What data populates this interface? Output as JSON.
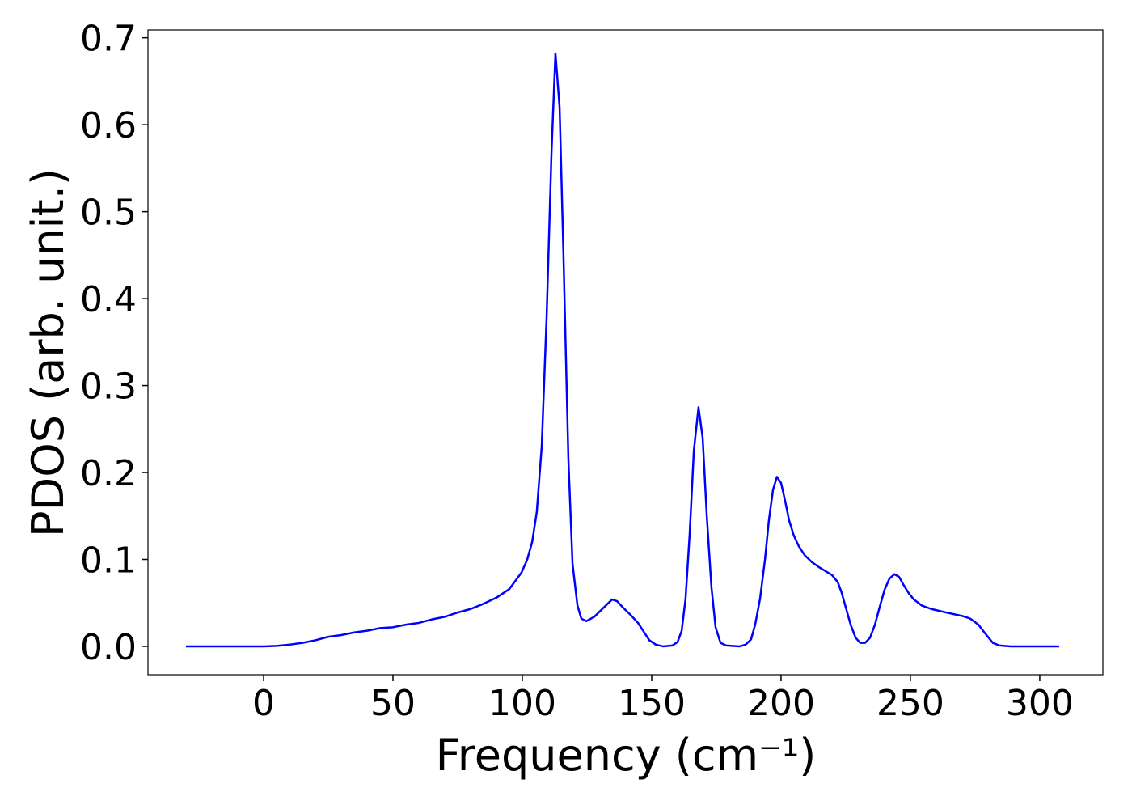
{
  "chart_data": {
    "type": "line",
    "xlabel": "Frequency (cm⁻¹)",
    "ylabel": "PDOS (arb. unit.)",
    "xlim": [
      -44.7,
      324.4
    ],
    "ylim": [
      -0.0326,
      0.709
    ],
    "xticks": [
      0,
      50,
      100,
      150,
      200,
      250,
      300
    ],
    "yticks": [
      {
        "value": 0,
        "label": "0.0"
      },
      0.1,
      0.2,
      0.3,
      0.4,
      0.5,
      0.6,
      0.7
    ],
    "series": [
      {
        "name": "PDOS",
        "color": "#0000ff",
        "x": [
          -30,
          0,
          5,
          10,
          15,
          20,
          25,
          30,
          35,
          40,
          45,
          50,
          55,
          60,
          65,
          70,
          75,
          80,
          85,
          90,
          95,
          99.7,
          101.9,
          103.8,
          105.6,
          107.5,
          109.4,
          111.3,
          112.8,
          114.4,
          115.9,
          117.8,
          119.4,
          121.3,
          122.8,
          124.7,
          127.8,
          130.9,
          134.7,
          136.6,
          138.8,
          141.9,
          144.7,
          146.9,
          149.1,
          151.6,
          154.4,
          158,
          160,
          161.6,
          163.1,
          164.7,
          166.3,
          168.1,
          169.7,
          171.3,
          173.1,
          174.7,
          176.6,
          178.8,
          184,
          186.3,
          188.4,
          190,
          191.9,
          193.8,
          195.3,
          196.9,
          198.4,
          200,
          201.6,
          203.1,
          205,
          206.9,
          209.1,
          211.9,
          214.7,
          217.5,
          219.7,
          221.9,
          223.4,
          225,
          226.9,
          228.8,
          230.6,
          232.5,
          234.4,
          236.3,
          238.1,
          240,
          241.9,
          243.8,
          245.6,
          247.5,
          249.4,
          251.3,
          254.4,
          258.1,
          263.8,
          270,
          273.1,
          276.3,
          279.4,
          281.9,
          284.4,
          288.8,
          307.5
        ],
        "values": [
          0,
          0,
          0.0005,
          0.002,
          0.004,
          0.007,
          0.011,
          0.013,
          0.016,
          0.018,
          0.021,
          0.022,
          0.025,
          0.027,
          0.031,
          0.034,
          0.039,
          0.043,
          0.049,
          0.056,
          0.066,
          0.085,
          0.1,
          0.12,
          0.155,
          0.23,
          0.38,
          0.57,
          0.682,
          0.62,
          0.45,
          0.215,
          0.095,
          0.047,
          0.032,
          0.029,
          0.034,
          0.043,
          0.054,
          0.052,
          0.045,
          0.036,
          0.027,
          0.017,
          0.007,
          0.002,
          0,
          0.001,
          0.005,
          0.018,
          0.055,
          0.13,
          0.225,
          0.275,
          0.24,
          0.15,
          0.068,
          0.022,
          0.004,
          0.001,
          0,
          0.002,
          0.008,
          0.025,
          0.055,
          0.1,
          0.145,
          0.18,
          0.195,
          0.188,
          0.167,
          0.145,
          0.127,
          0.115,
          0.105,
          0.097,
          0.091,
          0.086,
          0.082,
          0.074,
          0.062,
          0.045,
          0.025,
          0.01,
          0.004,
          0.004,
          0.01,
          0.025,
          0.045,
          0.065,
          0.078,
          0.083,
          0.08,
          0.07,
          0.061,
          0.054,
          0.047,
          0.043,
          0.039,
          0.035,
          0.032,
          0.025,
          0.013,
          0.004,
          0.001,
          0,
          0
        ]
      }
    ]
  }
}
